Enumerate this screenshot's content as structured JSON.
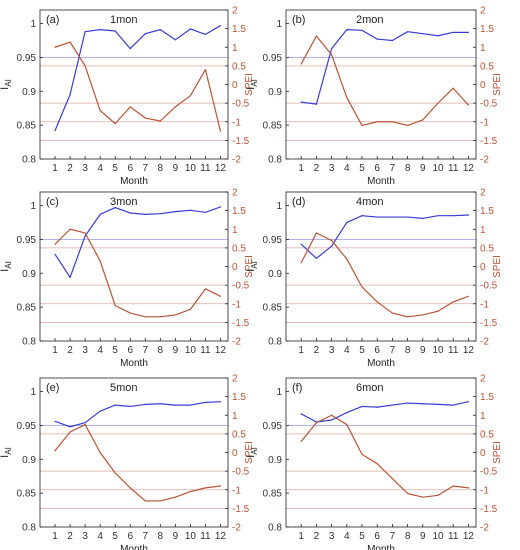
{
  "chart_data": [
    {
      "type": "line",
      "panel_label": "(a)",
      "title": "1mon",
      "xlabel": "Month",
      "ylabel_left": "I",
      "ylabel_left_sub": "AI",
      "ylabel_right": "SPEI",
      "x": [
        1,
        2,
        3,
        4,
        5,
        6,
        7,
        8,
        9,
        10,
        11,
        12
      ],
      "xlim": [
        0,
        12.5
      ],
      "ylim_left": [
        0.8,
        1.02
      ],
      "ylim_right": [
        -2,
        2
      ],
      "yticks_left": [
        "0.8",
        "0.85",
        "0.9",
        "0.95",
        "1"
      ],
      "yticks_right": [
        "-2",
        "-1.5",
        "-1",
        "-0.5",
        "0",
        "0.5",
        "1",
        "1.5",
        "2"
      ],
      "reference_lines_left": [
        0.95
      ],
      "reference_lines_right": [
        0.5,
        -0.5,
        -1,
        -1.5
      ],
      "series": [
        {
          "axis": "left",
          "color": "#3b3bd1",
          "values": [
            0.842,
            0.895,
            0.988,
            0.991,
            0.989,
            0.963,
            0.985,
            0.991,
            0.976,
            0.992,
            0.984,
            0.997
          ]
        },
        {
          "axis": "right",
          "color": "#b5553a",
          "values": [
            1.0,
            1.14,
            0.5,
            -0.7,
            -1.05,
            -0.6,
            -0.9,
            -0.98,
            -0.6,
            -0.3,
            0.4,
            -1.25
          ]
        }
      ]
    },
    {
      "type": "line",
      "panel_label": "(b)",
      "title": "2mon",
      "xlabel": "Month",
      "ylabel_left": "I",
      "ylabel_left_sub": "AI",
      "ylabel_right": "SPEI",
      "x": [
        1,
        2,
        3,
        4,
        5,
        6,
        7,
        8,
        9,
        10,
        11,
        12
      ],
      "xlim": [
        0,
        12.5
      ],
      "ylim_left": [
        0.8,
        1.02
      ],
      "ylim_right": [
        -2,
        2
      ],
      "yticks_left": [
        "0.8",
        "0.85",
        "0.9",
        "0.95",
        "1"
      ],
      "yticks_right": [
        "-2",
        "-1.5",
        "-1",
        "-0.5",
        "0",
        "0.5",
        "1",
        "1.5",
        "2"
      ],
      "reference_lines_left": [
        0.95
      ],
      "reference_lines_right": [
        0.5,
        -0.5,
        -1,
        -1.5
      ],
      "series": [
        {
          "axis": "left",
          "color": "#3b3bd1",
          "values": [
            0.884,
            0.881,
            0.963,
            0.991,
            0.99,
            0.977,
            0.975,
            0.988,
            0.985,
            0.982,
            0.987,
            0.987
          ]
        },
        {
          "axis": "right",
          "color": "#b5553a",
          "values": [
            0.55,
            1.3,
            0.8,
            -0.35,
            -1.1,
            -1.0,
            -1.0,
            -1.1,
            -0.95,
            -0.5,
            -0.1,
            -0.55
          ]
        }
      ]
    },
    {
      "type": "line",
      "panel_label": "(c)",
      "title": "3mon",
      "xlabel": "Month",
      "ylabel_left": "I",
      "ylabel_left_sub": "AI",
      "ylabel_right": "SPEI",
      "x": [
        1,
        2,
        3,
        4,
        5,
        6,
        7,
        8,
        9,
        10,
        11,
        12
      ],
      "xlim": [
        0,
        12.5
      ],
      "ylim_left": [
        0.8,
        1.02
      ],
      "ylim_right": [
        -2,
        2
      ],
      "yticks_left": [
        "0.8",
        "0.85",
        "0.9",
        "0.95",
        "1"
      ],
      "yticks_right": [
        "-2",
        "-1.5",
        "-1",
        "-0.5",
        "0",
        "0.5",
        "1",
        "1.5",
        "2"
      ],
      "reference_lines_left": [
        0.95
      ],
      "reference_lines_right": [
        0.5,
        -0.5,
        -1,
        -1.5
      ],
      "series": [
        {
          "axis": "left",
          "color": "#3b3bd1",
          "values": [
            0.928,
            0.894,
            0.955,
            0.987,
            0.997,
            0.989,
            0.987,
            0.988,
            0.991,
            0.993,
            0.99,
            0.998
          ]
        },
        {
          "axis": "right",
          "color": "#b5553a",
          "values": [
            0.6,
            1.0,
            0.9,
            0.15,
            -1.05,
            -1.25,
            -1.35,
            -1.35,
            -1.3,
            -1.15,
            -0.6,
            -0.8
          ]
        }
      ]
    },
    {
      "type": "line",
      "panel_label": "(d)",
      "title": "4mon",
      "xlabel": "Month",
      "ylabel_left": "I",
      "ylabel_left_sub": "AI",
      "ylabel_right": "SPEI",
      "x": [
        1,
        2,
        3,
        4,
        5,
        6,
        7,
        8,
        9,
        10,
        11,
        12
      ],
      "xlim": [
        0,
        12.5
      ],
      "ylim_left": [
        0.8,
        1.02
      ],
      "ylim_right": [
        -2,
        2
      ],
      "yticks_left": [
        "0.8",
        "0.85",
        "0.9",
        "0.95",
        "1"
      ],
      "yticks_right": [
        "-2",
        "-1.5",
        "-1",
        "-0.5",
        "0",
        "0.5",
        "1",
        "1.5",
        "2"
      ],
      "reference_lines_left": [
        0.95
      ],
      "reference_lines_right": [
        0.5,
        -0.5,
        -1,
        -1.5
      ],
      "series": [
        {
          "axis": "left",
          "color": "#3b3bd1",
          "values": [
            0.943,
            0.922,
            0.94,
            0.975,
            0.985,
            0.983,
            0.983,
            0.983,
            0.981,
            0.985,
            0.985,
            0.986
          ]
        },
        {
          "axis": "right",
          "color": "#b5553a",
          "values": [
            0.1,
            0.9,
            0.7,
            0.2,
            -0.55,
            -0.95,
            -1.25,
            -1.35,
            -1.3,
            -1.2,
            -0.95,
            -0.8
          ]
        }
      ]
    },
    {
      "type": "line",
      "panel_label": "(e)",
      "title": "5mon",
      "xlabel": "Month",
      "ylabel_left": "I",
      "ylabel_left_sub": "AI",
      "ylabel_right": "SPEI",
      "x": [
        1,
        2,
        3,
        4,
        5,
        6,
        7,
        8,
        9,
        10,
        11,
        12
      ],
      "xlim": [
        0,
        12.5
      ],
      "ylim_left": [
        0.8,
        1.02
      ],
      "ylim_right": [
        -2,
        2
      ],
      "yticks_left": [
        "0.8",
        "0.85",
        "0.9",
        "0.95",
        "1"
      ],
      "yticks_right": [
        "-2",
        "-1.5",
        "-1",
        "-0.5",
        "0",
        "0.5",
        "1",
        "1.5",
        "2"
      ],
      "reference_lines_left": [
        0.95
      ],
      "reference_lines_right": [
        0.5,
        -0.5,
        -1,
        -1.5
      ],
      "series": [
        {
          "axis": "left",
          "color": "#3b3bd1",
          "values": [
            0.956,
            0.948,
            0.954,
            0.971,
            0.98,
            0.978,
            0.981,
            0.982,
            0.98,
            0.98,
            0.984,
            0.985
          ]
        },
        {
          "axis": "right",
          "color": "#b5553a",
          "values": [
            0.05,
            0.55,
            0.75,
            0.0,
            -0.55,
            -0.95,
            -1.3,
            -1.3,
            -1.2,
            -1.05,
            -0.95,
            -0.9
          ]
        }
      ]
    },
    {
      "type": "line",
      "panel_label": "(f)",
      "title": "6mon",
      "xlabel": "Month",
      "ylabel_left": "I",
      "ylabel_left_sub": "AI",
      "ylabel_right": "SPEI",
      "x": [
        1,
        2,
        3,
        4,
        5,
        6,
        7,
        8,
        9,
        10,
        11,
        12
      ],
      "xlim": [
        0,
        12.5
      ],
      "ylim_left": [
        0.8,
        1.02
      ],
      "ylim_right": [
        -2,
        2
      ],
      "yticks_left": [
        "0.8",
        "0.85",
        "0.9",
        "0.95",
        "1"
      ],
      "yticks_right": [
        "-2",
        "-1.5",
        "-1",
        "-0.5",
        "0",
        "0.5",
        "1",
        "1.5",
        "2"
      ],
      "reference_lines_left": [
        0.95
      ],
      "reference_lines_right": [
        0.5,
        -0.5,
        -1,
        -1.5
      ],
      "series": [
        {
          "axis": "left",
          "color": "#3b3bd1",
          "values": [
            0.967,
            0.955,
            0.958,
            0.969,
            0.978,
            0.977,
            0.98,
            0.983,
            0.982,
            0.981,
            0.98,
            0.985
          ]
        },
        {
          "axis": "right",
          "color": "#b5553a",
          "values": [
            0.3,
            0.8,
            1.0,
            0.75,
            -0.05,
            -0.3,
            -0.7,
            -1.1,
            -1.2,
            -1.15,
            -0.9,
            -0.95
          ]
        }
      ]
    }
  ]
}
